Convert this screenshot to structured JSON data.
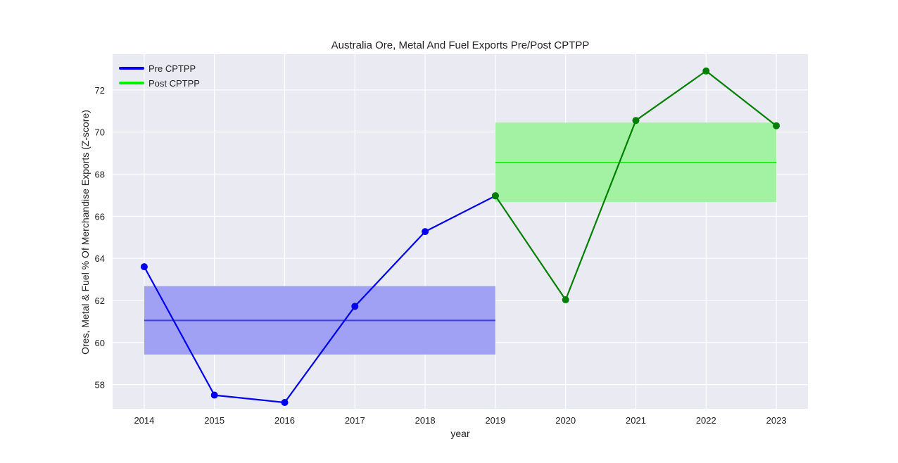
{
  "chart_data": {
    "type": "line",
    "title": "Australia Ore, Metal And Fuel Exports Pre/Post CPTPP",
    "xlabel": "year",
    "ylabel": "Ores, Metal & Fuel % Of Merchandise Exports (Z-score)",
    "xlim": [
      2013.55,
      2023.45
    ],
    "ylim": [
      56.85,
      73.7
    ],
    "x_ticks": [
      2014,
      2015,
      2016,
      2017,
      2018,
      2019,
      2020,
      2021,
      2022,
      2023
    ],
    "y_ticks": [
      58,
      60,
      62,
      64,
      66,
      68,
      70,
      72
    ],
    "grid": true,
    "legend_position": "top-left",
    "series": [
      {
        "name": "Pre CPTPP",
        "color": "#0000ee",
        "x": [
          2014,
          2015,
          2016,
          2017,
          2018,
          2019
        ],
        "values": [
          63.6,
          57.5,
          57.15,
          61.72,
          65.27,
          66.97
        ]
      },
      {
        "name": "Post CPTPP",
        "color": "#008000",
        "legend_color": "#00ee00",
        "x": [
          2019,
          2020,
          2021,
          2022,
          2023
        ],
        "values": [
          66.97,
          62.03,
          70.55,
          72.9,
          70.3
        ]
      }
    ],
    "bands": [
      {
        "x_range": [
          2014,
          2019
        ],
        "mean": 61.05,
        "lower": 59.43,
        "upper": 62.68,
        "fill_color": "#a0a0f5",
        "line_color": "#3b3bf0"
      },
      {
        "x_range": [
          2019,
          2023
        ],
        "mean": 68.55,
        "lower": 66.68,
        "upper": 70.45,
        "fill_color": "#a3f2a3",
        "line_color": "#22ee22"
      }
    ]
  }
}
